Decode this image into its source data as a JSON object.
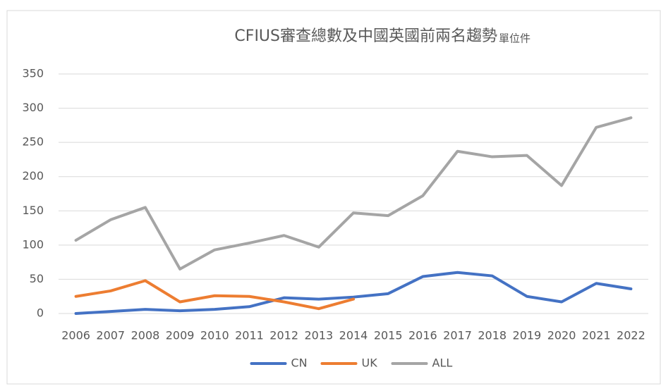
{
  "chart_data": {
    "type": "line",
    "title": "CFIUS審查總數及中國英國前兩名趨勢",
    "subtitle": "單位件",
    "categories": [
      "2006",
      "2007",
      "2008",
      "2009",
      "2010",
      "2011",
      "2012",
      "2013",
      "2014",
      "2015",
      "2016",
      "2017",
      "2018",
      "2019",
      "2020",
      "2021",
      "2022"
    ],
    "series": [
      {
        "name": "CN",
        "color": "#4472c4",
        "values": [
          0,
          3,
          6,
          4,
          6,
          10,
          23,
          21,
          24,
          29,
          54,
          60,
          55,
          25,
          17,
          44,
          36
        ]
      },
      {
        "name": "UK",
        "color": "#ed7d31",
        "values": [
          25,
          33,
          48,
          17,
          26,
          25,
          17,
          7,
          21,
          null,
          null,
          null,
          null,
          null,
          null,
          null,
          null
        ]
      },
      {
        "name": "ALL",
        "color": "#a5a5a5",
        "values": [
          107,
          137,
          155,
          65,
          93,
          103,
          114,
          97,
          147,
          143,
          172,
          237,
          229,
          231,
          187,
          272,
          286
        ]
      }
    ],
    "ylim": [
      0,
      350
    ],
    "yticks": [
      0,
      50,
      100,
      150,
      200,
      250,
      300,
      350
    ],
    "grid": true,
    "legend": "bottom"
  }
}
